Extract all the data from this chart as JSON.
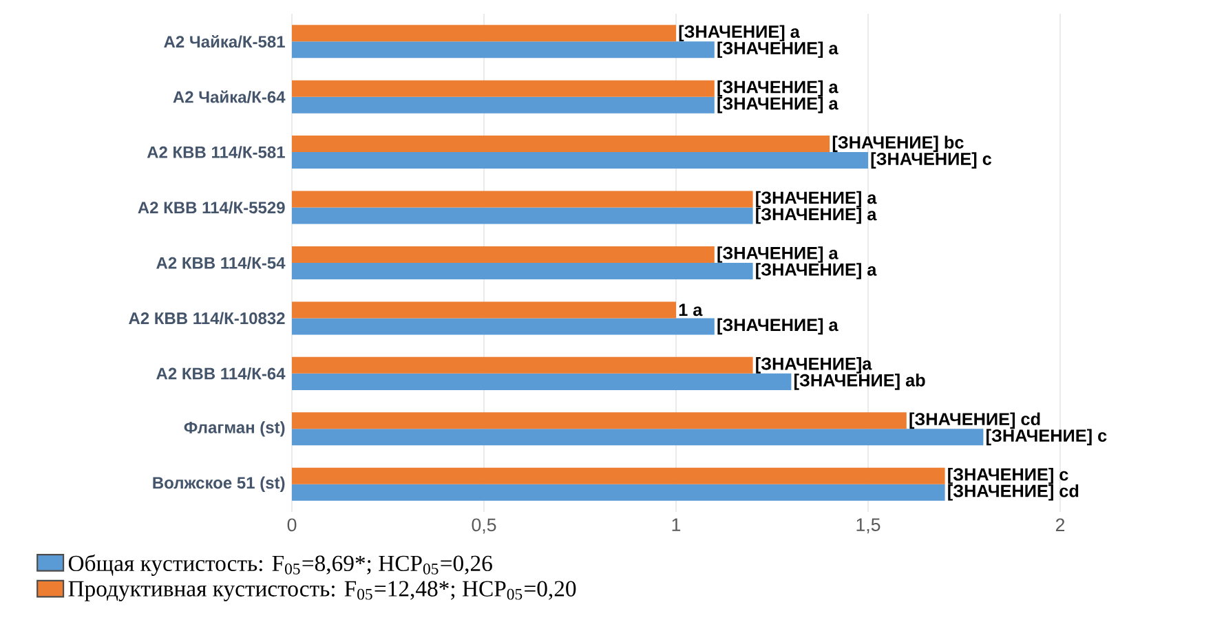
{
  "chart_data": {
    "type": "bar",
    "orientation": "horizontal",
    "categories": [
      "А2 Чайка/К-581",
      "А2 Чайка/К-64",
      "А2 КВВ 114/К-581",
      "А2 КВВ 114/К-5529",
      "А2 КВВ 114/К-54",
      "А2 КВВ 114/К-10832",
      "А2 КВВ 114/К-64",
      "Флагман (st)",
      "Волжское 51 (st)"
    ],
    "series": [
      {
        "name": "Общая кустистость: F$_{05}$=8,69*; НСР$_{05}$=0,26",
        "color": "#5b9bd5",
        "values": [
          1.1,
          1.1,
          1.5,
          1.2,
          1.2,
          1.1,
          1.3,
          1.8,
          1.7
        ],
        "value_labels": [
          "[ЗНАЧЕНИЕ] a",
          "[ЗНАЧЕНИЕ] a",
          "[ЗНАЧЕНИЕ] c",
          "[ЗНАЧЕНИЕ] a",
          "[ЗНАЧЕНИЕ] a",
          "[ЗНАЧЕНИЕ] a",
          "[ЗНАЧЕНИЕ] ab",
          "[ЗНАЧЕНИЕ] c",
          "[ЗНАЧЕНИЕ] cd"
        ]
      },
      {
        "name": "Продуктивная кустистость: F$_{05}$=12,48*; НСР$_{05}$=0,20",
        "color": "#ed7d31",
        "values": [
          1.0,
          1.1,
          1.4,
          1.2,
          1.1,
          1.0,
          1.2,
          1.6,
          1.7
        ],
        "value_labels": [
          "[ЗНАЧЕНИЕ] a",
          "[ЗНАЧЕНИЕ] a",
          "[ЗНАЧЕНИЕ] bc",
          "[ЗНАЧЕНИЕ] a",
          "[ЗНАЧЕНИЕ] a",
          "1 a",
          "[ЗНАЧЕНИЕ]a",
          "[ЗНАЧЕНИЕ] cd",
          "[ЗНАЧЕНИЕ] c"
        ]
      }
    ],
    "xlim": [
      0,
      2
    ],
    "xticks": [
      0,
      {
        "value": 0.5,
        "label": "0,5"
      },
      1,
      {
        "value": 1.5,
        "label": "1,5"
      },
      2
    ],
    "grid": "x",
    "legend": "bottom left"
  }
}
